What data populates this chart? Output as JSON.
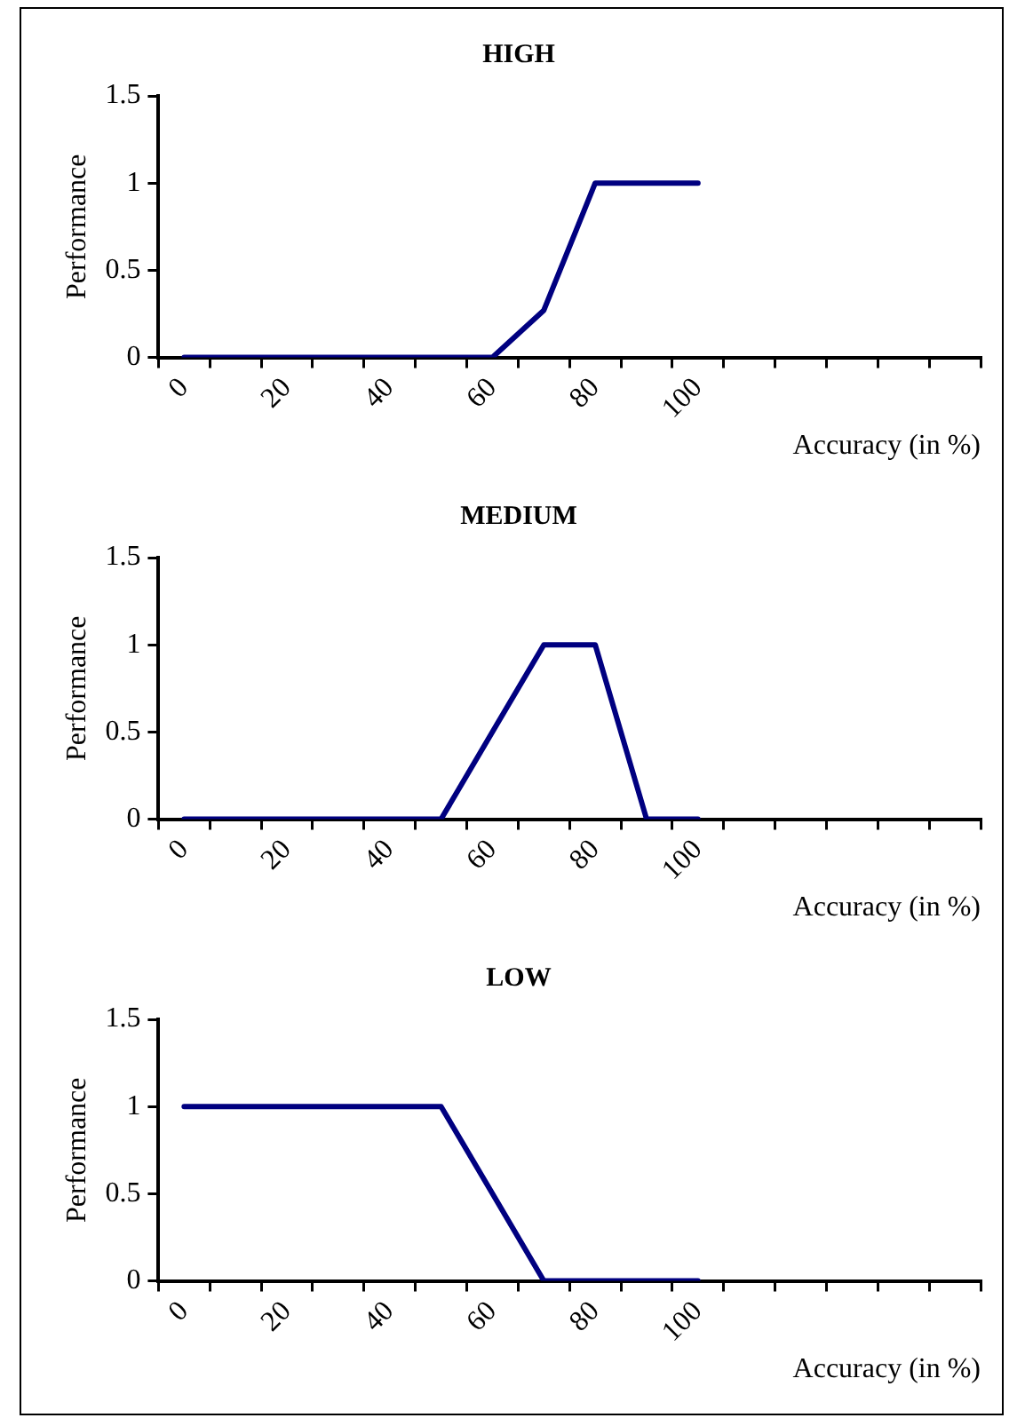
{
  "chart_data": [
    {
      "type": "line",
      "title": "HIGH",
      "xlabel": "Accuracy (in %)",
      "ylabel": "Performance",
      "categories": [
        "0",
        null,
        "20",
        null,
        "40",
        null,
        "60",
        null,
        "80",
        null,
        "100",
        null,
        null,
        null,
        null,
        null
      ],
      "series": [
        {
          "color": "#000080",
          "values": [
            0,
            0,
            0,
            0,
            0,
            0,
            0,
            0.27,
            1,
            1,
            1,
            null,
            null,
            null,
            null,
            null
          ]
        }
      ],
      "ylim": [
        0,
        1.5
      ],
      "yticks": [
        0,
        0.5,
        1,
        1.5
      ],
      "grid": false,
      "legend": false,
      "marker": "none",
      "line_style": "solid"
    },
    {
      "type": "line",
      "title": "MEDIUM",
      "xlabel": "Accuracy (in %)",
      "ylabel": "Performance",
      "categories": [
        "0",
        null,
        "20",
        null,
        "40",
        null,
        "60",
        null,
        "80",
        null,
        "100",
        null,
        null,
        null,
        null,
        null
      ],
      "series": [
        {
          "color": "#000080",
          "values": [
            0,
            0,
            0,
            0,
            0,
            0,
            0.5,
            1,
            1,
            0,
            0,
            null,
            null,
            null,
            null,
            null
          ]
        }
      ],
      "ylim": [
        0,
        1.5
      ],
      "yticks": [
        0,
        0.5,
        1,
        1.5
      ],
      "grid": false,
      "legend": false,
      "marker": "none",
      "line_style": "solid"
    },
    {
      "type": "line",
      "title": "LOW",
      "xlabel": "Accuracy (in %)",
      "ylabel": "Performance",
      "categories": [
        "0",
        null,
        "20",
        null,
        "40",
        null,
        "60",
        null,
        "80",
        null,
        "100",
        null,
        null,
        null,
        null,
        null
      ],
      "series": [
        {
          "color": "#000080",
          "values": [
            1,
            1,
            1,
            1,
            1,
            1,
            0.5,
            0,
            0,
            0,
            0,
            null,
            null,
            null,
            null,
            null
          ]
        }
      ],
      "ylim": [
        0,
        1.5
      ],
      "yticks": [
        0,
        0.5,
        1,
        1.5
      ],
      "grid": false,
      "legend": false,
      "marker": "none",
      "line_style": "solid"
    }
  ]
}
